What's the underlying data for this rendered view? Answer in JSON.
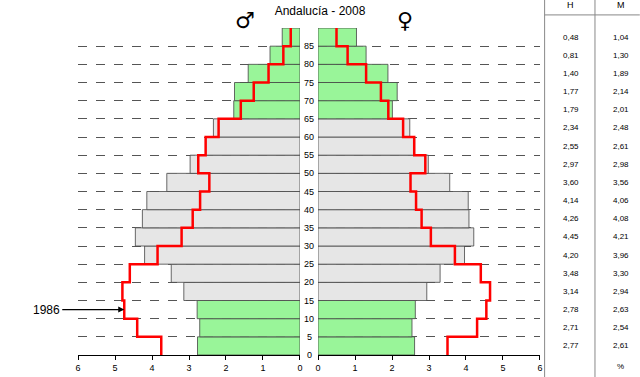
{
  "chart_data": {
    "type": "bar",
    "orientation": "horizontal",
    "title": "Andalucía - 2008",
    "side_labels": [
      "♂",
      "♀"
    ],
    "xlabel": "%",
    "y": [
      0,
      5,
      10,
      15,
      20,
      25,
      30,
      35,
      40,
      45,
      50,
      55,
      60,
      65,
      70,
      75,
      80,
      85
    ],
    "ylim": [
      0,
      90
    ],
    "yticks": [
      0,
      5,
      10,
      15,
      20,
      25,
      30,
      35,
      40,
      45,
      50,
      55,
      60,
      65,
      70,
      75,
      80,
      85
    ],
    "xlim": [
      0,
      6
    ],
    "xticks": [
      0,
      1,
      2,
      3,
      4,
      5,
      6
    ],
    "grid": true,
    "series": [
      {
        "name": "H",
        "type": "bar",
        "axis": "x",
        "values": [
          2.77,
          2.71,
          2.78,
          3.14,
          3.48,
          4.2,
          4.45,
          4.26,
          4.14,
          3.6,
          2.97,
          2.55,
          2.34,
          1.79,
          1.77,
          1.4,
          0.81,
          0.48
        ],
        "value_labels": [
          "2,77",
          "2,71",
          "2,78",
          "3,14",
          "3,48",
          "4,20",
          "4,45",
          "4,26",
          "4,14",
          "3,60",
          "2,97",
          "2,55",
          "2,34",
          "1,79",
          "1,77",
          "1,40",
          "0,81",
          "0,48"
        ],
        "colors": [
          "#99f599",
          "#99f599",
          "#99f599",
          "#e6e6e6",
          "#e6e6e6",
          "#e6e6e6",
          "#e6e6e6",
          "#e6e6e6",
          "#e6e6e6",
          "#e6e6e6",
          "#e6e6e6",
          "#e6e6e6",
          "#e6e6e6",
          "#99f599",
          "#99f599",
          "#99f599",
          "#99f599",
          "#99f599"
        ]
      },
      {
        "name": "M",
        "type": "bar",
        "axis": "x2",
        "values": [
          2.61,
          2.54,
          2.63,
          2.94,
          3.3,
          3.96,
          4.21,
          4.08,
          4.06,
          3.56,
          2.98,
          2.61,
          2.48,
          2.01,
          2.14,
          1.89,
          1.3,
          1.04
        ],
        "value_labels": [
          "2,61",
          "2,54",
          "2,63",
          "2,94",
          "3,30",
          "3,96",
          "4,21",
          "4,08",
          "4,06",
          "3,56",
          "2,98",
          "2,61",
          "2,48",
          "2,01",
          "2,14",
          "1,89",
          "1,30",
          "1,04"
        ],
        "colors": [
          "#99f599",
          "#99f599",
          "#99f599",
          "#e6e6e6",
          "#e6e6e6",
          "#e6e6e6",
          "#e6e6e6",
          "#e6e6e6",
          "#e6e6e6",
          "#e6e6e6",
          "#e6e6e6",
          "#e6e6e6",
          "#e6e6e6",
          "#99f599",
          "#99f599",
          "#99f599",
          "#99f599",
          "#99f599"
        ]
      },
      {
        "name": "1986",
        "type": "line",
        "axis": "x",
        "color": "#ff0000",
        "values": [
          3.75,
          4.4,
          4.75,
          4.8,
          4.6,
          3.85,
          3.2,
          2.9,
          2.7,
          2.45,
          2.75,
          2.55,
          2.2,
          1.6,
          1.25,
          0.85,
          0.45,
          0.25
        ]
      },
      {
        "name": "1986",
        "type": "line",
        "axis": "x2",
        "color": "#ff0000",
        "values": [
          3.5,
          4.3,
          4.55,
          4.65,
          4.4,
          3.7,
          3.05,
          2.8,
          2.65,
          2.5,
          2.9,
          2.6,
          2.3,
          1.9,
          1.7,
          1.3,
          0.8,
          0.5
        ]
      }
    ]
  }
}
